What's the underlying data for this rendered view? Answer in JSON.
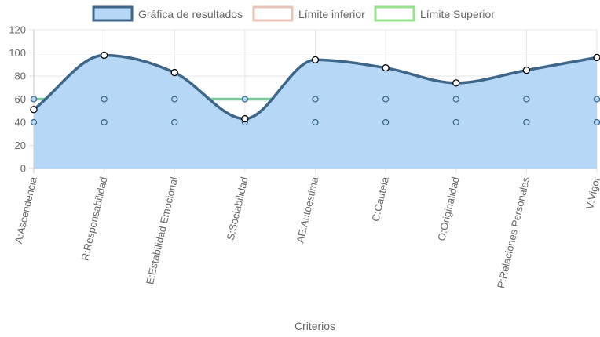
{
  "chart_data": {
    "type": "line",
    "xlabel": "Criterios",
    "ylabel": "",
    "ylim": [
      0,
      120
    ],
    "yticks": [
      0,
      20,
      40,
      60,
      80,
      100,
      120
    ],
    "grid": true,
    "legend_position": "top-center",
    "categories": [
      "A:Ascendencia",
      "R:Responsabilidad",
      "E:Estabilidad Emocional",
      "S:Sociabilidad",
      "AE:Autoestima",
      "C:Cautela",
      "O:Originalidad",
      "P:Relaciones Personales",
      "V:Vigor"
    ],
    "series": [
      {
        "name": "Gráfica de resultados",
        "values": [
          51,
          98,
          83,
          43,
          94,
          87,
          74,
          85,
          96
        ],
        "line_color": "#3e6688",
        "fill_color": "#b6d8f6",
        "filled": true,
        "curved": true,
        "point_fill": "#ffffff",
        "point_stroke": "#000000"
      },
      {
        "name": "Límite inferior",
        "values": [
          40,
          40,
          40,
          40,
          40,
          40,
          40,
          40,
          40
        ],
        "line_color": "#a9b4d1",
        "legend_color": "#e8c4b8",
        "filled": false,
        "curved": false,
        "point_fill": "#b6d8f6",
        "point_stroke": "#3e6688"
      },
      {
        "name": "Límite Superior",
        "values": [
          60,
          60,
          60,
          60,
          60,
          60,
          60,
          60,
          60
        ],
        "line_color": "#7ccb9c",
        "legend_color": "#98e08d",
        "filled": false,
        "curved": false,
        "point_fill": "#b6d8f6",
        "point_stroke": "#3e6688"
      }
    ]
  }
}
